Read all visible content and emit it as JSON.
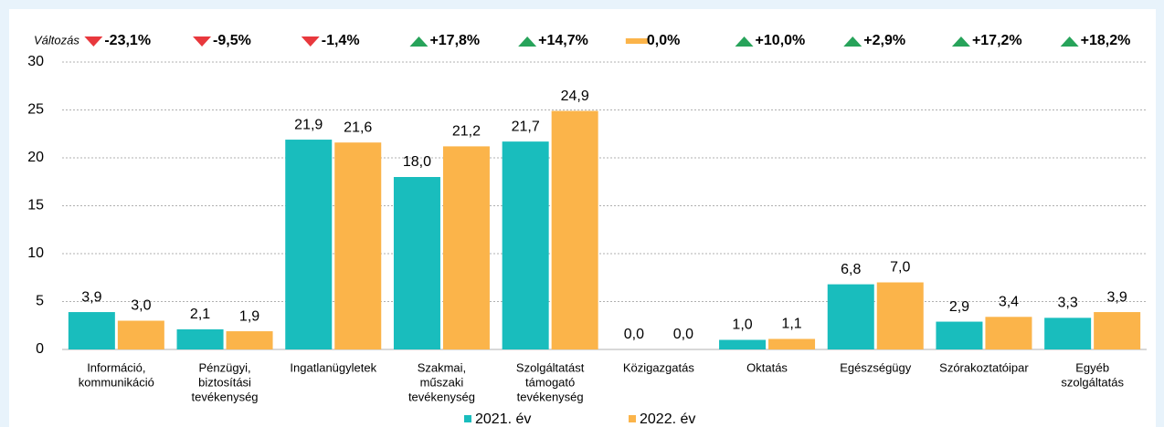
{
  "chart_data": {
    "type": "bar",
    "change_title": "Változás",
    "changes": [
      {
        "value": -23.1,
        "label": "-23,1%"
      },
      {
        "value": -9.5,
        "label": "-9,5%"
      },
      {
        "value": -1.4,
        "label": "-1,4%"
      },
      {
        "value": 17.8,
        "label": "+17,8%"
      },
      {
        "value": 14.7,
        "label": "+14,7%"
      },
      {
        "value": 0.0,
        "label": "0,0%"
      },
      {
        "value": 10.0,
        "label": "+10,0%"
      },
      {
        "value": 2.9,
        "label": "+2,9%"
      },
      {
        "value": 17.2,
        "label": "+17,2%"
      },
      {
        "value": 18.2,
        "label": "+18,2%"
      }
    ],
    "categories": [
      [
        "Információ,",
        "kommunikáció"
      ],
      [
        "Pénzügyi,",
        "biztosítási",
        "tevékenység"
      ],
      [
        "Ingatlanügyletek"
      ],
      [
        "Szakmai,",
        "műszaki",
        "tevékenység"
      ],
      [
        "Szolgáltatást",
        "támogató",
        "tevékenység"
      ],
      [
        "Közigazgatás"
      ],
      [
        "Oktatás"
      ],
      [
        "Egészségügy"
      ],
      [
        "Szórakoztatóipar"
      ],
      [
        "Egyéb",
        "szolgáltatás"
      ]
    ],
    "series": [
      {
        "name": "2021. év",
        "color": "#19bdbd",
        "values": [
          3.9,
          2.1,
          21.9,
          18.0,
          21.7,
          0.0,
          1.0,
          6.8,
          2.9,
          3.3
        ],
        "value_labels": [
          "3,9",
          "2,1",
          "21,9",
          "18,0",
          "21,7",
          "0,0",
          "1,0",
          "6,8",
          "2,9",
          "3,3"
        ]
      },
      {
        "name": "2022. év",
        "color": "#fbb44a",
        "values": [
          3.0,
          1.9,
          21.6,
          21.2,
          24.9,
          0.0,
          1.1,
          7.0,
          3.4,
          3.9
        ],
        "value_labels": [
          "3,0",
          "1,9",
          "21,6",
          "21,2",
          "24,9",
          "0,0",
          "1,1",
          "7,0",
          "3,4",
          "3,9"
        ]
      }
    ],
    "ylim": [
      0,
      30
    ],
    "yticks": [
      0,
      5,
      10,
      15,
      20,
      25,
      30
    ],
    "grid": true
  }
}
